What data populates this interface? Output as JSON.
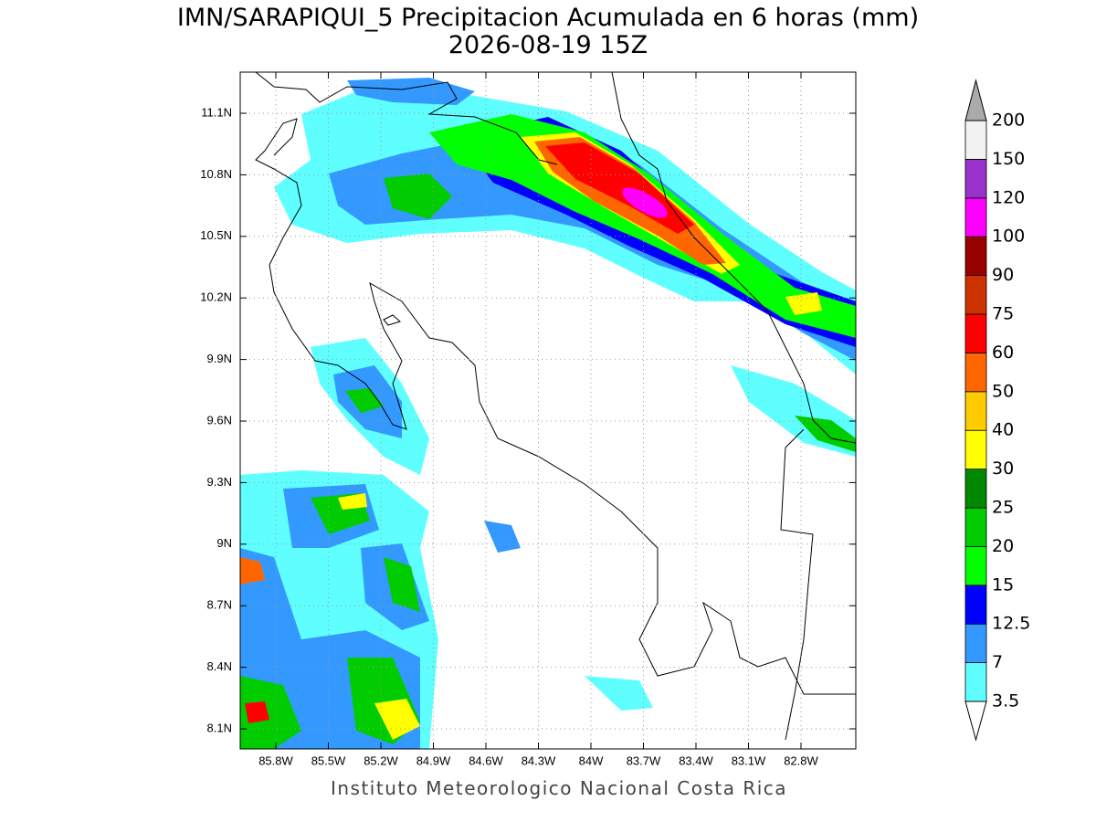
{
  "header": {
    "title": "IMN/SARAPIQUI_5 Precipitacion Acumulada en 6 horas (mm)",
    "subtitle": "2026-08-19 15Z"
  },
  "map": {
    "lat_labels": [
      "11.1N",
      "10.8N",
      "10.5N",
      "10.2N",
      "9.9N",
      "9.6N",
      "9.3N",
      "9N",
      "8.7N",
      "8.4N",
      "8.1N"
    ],
    "lon_labels": [
      "85.8W",
      "85.5W",
      "85.2W",
      "84.9W",
      "84.6W",
      "84.3W",
      "84W",
      "83.7W",
      "83.4W",
      "83.1W",
      "82.8W"
    ],
    "grid": true
  },
  "colorbar": {
    "levels": [
      3.5,
      7,
      12.5,
      15,
      20,
      25,
      30,
      40,
      50,
      60,
      75,
      90,
      100,
      120,
      150,
      200
    ],
    "colors": [
      "#5fffff",
      "#3399ff",
      "#0000ff",
      "#00ff00",
      "#00cc00",
      "#008800",
      "#ffff00",
      "#ffcc00",
      "#ff6600",
      "#ff0000",
      "#cc3300",
      "#990000",
      "#ff00ff",
      "#9933cc",
      "#f2f2f2"
    ],
    "under_color": "#ffffff",
    "over_color": "#aaaaaa"
  },
  "footer": "Instituto Meteorologico Nacional Costa Rica"
}
